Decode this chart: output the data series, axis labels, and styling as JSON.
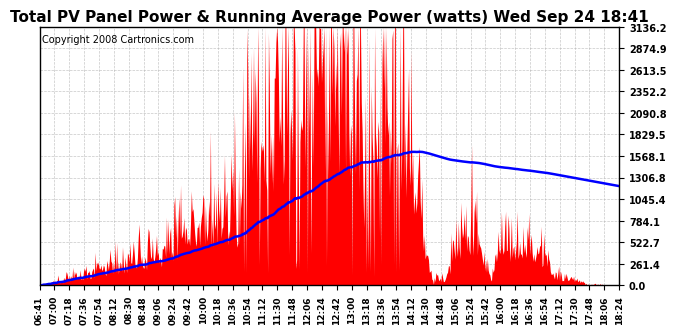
{
  "title": "Total PV Panel Power & Running Average Power (watts) Wed Sep 24 18:41",
  "copyright": "Copyright 2008 Cartronics.com",
  "ymax": 3136.2,
  "ymin": 0.0,
  "yticks": [
    0.0,
    261.4,
    522.7,
    784.1,
    1045.4,
    1306.8,
    1568.1,
    1829.5,
    2090.8,
    2352.2,
    2613.5,
    2874.9,
    3136.2
  ],
  "ytick_labels": [
    "0.0",
    "261.4",
    "522.7",
    "784.1",
    "1045.4",
    "1306.8",
    "1568.1",
    "1829.5",
    "2090.8",
    "2352.2",
    "2613.5",
    "2874.9",
    "3136.2"
  ],
  "xtick_labels": [
    "06:41",
    "07:00",
    "07:18",
    "07:36",
    "07:54",
    "08:12",
    "08:30",
    "08:48",
    "09:06",
    "09:24",
    "09:42",
    "10:00",
    "10:18",
    "10:36",
    "10:54",
    "11:12",
    "11:30",
    "11:48",
    "12:06",
    "12:24",
    "12:42",
    "13:00",
    "13:18",
    "13:36",
    "13:54",
    "14:12",
    "14:30",
    "14:48",
    "15:06",
    "15:24",
    "15:42",
    "16:00",
    "16:18",
    "16:36",
    "16:54",
    "17:12",
    "17:30",
    "17:48",
    "18:06",
    "18:24"
  ],
  "bg_color": "#ffffff",
  "plot_bg_color": "#ffffff",
  "grid_color": "#b0b0b0",
  "pv_color": "#ff0000",
  "avg_color": "#0000ff",
  "title_fontsize": 11,
  "copyright_fontsize": 7
}
